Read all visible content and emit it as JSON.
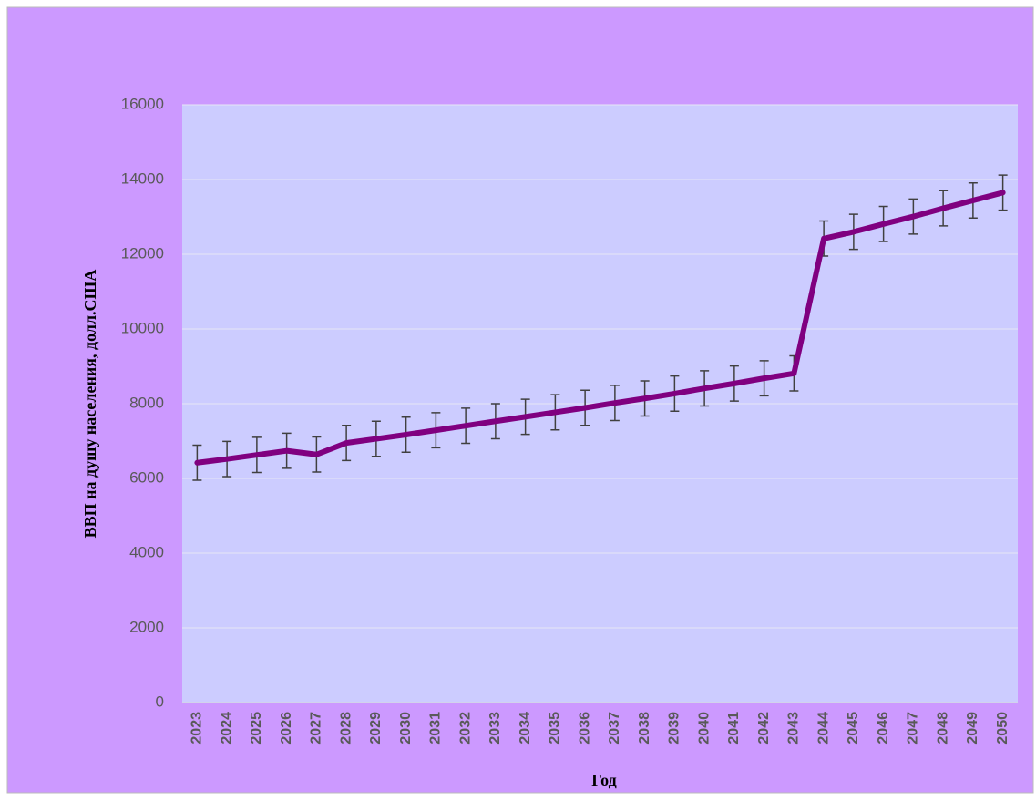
{
  "chart_data": {
    "type": "line",
    "x_label": "Год",
    "y_label": "ВВП на душу населения, долл.США",
    "categories": [
      "2023",
      "2024",
      "2025",
      "2026",
      "2027",
      "2028",
      "2029",
      "2030",
      "2031",
      "2032",
      "2033",
      "2034",
      "2035",
      "2036",
      "2037",
      "2038",
      "2039",
      "2040",
      "2041",
      "2042",
      "2043",
      "2044",
      "2045",
      "2046",
      "2047",
      "2048",
      "2049",
      "2050"
    ],
    "series": [
      {
        "color": "#800080",
        "values": [
          6420,
          6520,
          6630,
          6740,
          6640,
          6950,
          7060,
          7170,
          7290,
          7410,
          7530,
          7650,
          7770,
          7890,
          8020,
          8140,
          8270,
          8410,
          8540,
          8680,
          8810,
          12420,
          12600,
          12810,
          13010,
          13230,
          13440,
          13650
        ],
        "errors": [
          470,
          470,
          470,
          470,
          470,
          470,
          470,
          470,
          470,
          470,
          470,
          470,
          470,
          470,
          470,
          470,
          470,
          470,
          470,
          470,
          470,
          470,
          470,
          470,
          470,
          470,
          470,
          470
        ]
      }
    ],
    "ylim": [
      0,
      16000
    ],
    "yticks": [
      0,
      2000,
      4000,
      6000,
      8000,
      10000,
      12000,
      14000,
      16000
    ],
    "grid": true
  }
}
